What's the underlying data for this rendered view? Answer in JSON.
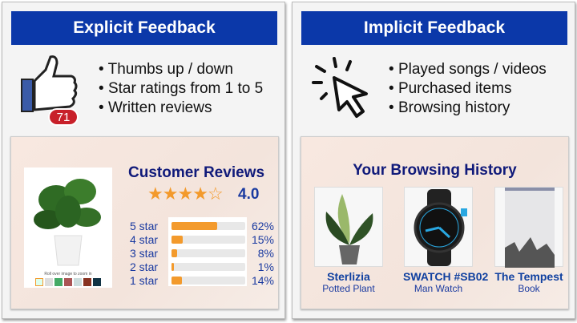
{
  "explicit": {
    "header": "Explicit Feedback",
    "badge": "71",
    "bullets": [
      "Thumbs up / down",
      "Star ratings from 1 to 5",
      "Written reviews"
    ],
    "reviews": {
      "title": "Customer Reviews",
      "rating": "4.0",
      "rating_value": 4.0,
      "zoom_hint": "Roll over image to zoom in",
      "rows": [
        {
          "label": "5 star",
          "pct": "62%",
          "value": 62
        },
        {
          "label": "4 star",
          "pct": "15%",
          "value": 15
        },
        {
          "label": "3 star",
          "pct": "8%",
          "value": 8
        },
        {
          "label": "2 star",
          "pct": "1%",
          "value": 1
        },
        {
          "label": "1 star",
          "pct": "14%",
          "value": 14
        }
      ]
    }
  },
  "implicit": {
    "header": "Implicit Feedback",
    "bullets": [
      "Played songs / videos",
      "Purchased items",
      "Browsing history"
    ],
    "history": {
      "title": "Your Browsing History",
      "items": [
        {
          "name": "Sterlizia",
          "sub": "Potted Plant"
        },
        {
          "name": "SWATCH #SB02",
          "sub": "Man Watch"
        },
        {
          "name": "The Tempest",
          "sub": "Book"
        }
      ]
    }
  },
  "colors": {
    "header": "#0b38a9",
    "title": "#101a7a",
    "star": "#f39a2c",
    "badge": "#c8202a"
  }
}
